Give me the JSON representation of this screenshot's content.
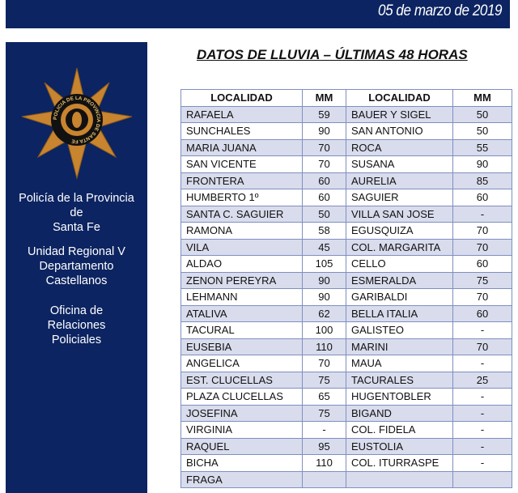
{
  "header": {
    "date": "05 de marzo de 2019"
  },
  "sidebar": {
    "colors": {
      "background": "#0c2461",
      "badge": "#c8842f"
    },
    "line1": "Policía de la Provincia",
    "line2": "de",
    "line3": "Santa Fe",
    "line4": "Unidad Regional V",
    "line5": "Departamento",
    "line6": "Castellanos",
    "line7": "Oficina de",
    "line8": "Relaciones",
    "line9": "Policiales",
    "badge_text": "POLICIA DE LA PROVINCIA DE SANTA FE"
  },
  "title": "DATOS DE LLUVIA – ÚLTIMAS 48 HORAS",
  "table": {
    "headers": [
      "LOCALIDAD",
      "MM",
      "LOCALIDAD",
      "MM"
    ],
    "rows": [
      [
        "RAFAELA",
        "59",
        "BAUER Y SIGEL",
        "50"
      ],
      [
        "SUNCHALES",
        "90",
        "SAN ANTONIO",
        "50"
      ],
      [
        "MARIA JUANA",
        "70",
        "ROCA",
        "55"
      ],
      [
        "SAN VICENTE",
        "70",
        "SUSANA",
        "90"
      ],
      [
        "FRONTERA",
        "60",
        "AURELIA",
        "85"
      ],
      [
        "HUMBERTO 1º",
        "60",
        "SAGUIER",
        "60"
      ],
      [
        "SANTA C. SAGUIER",
        "50",
        "VILLA SAN JOSE",
        "-"
      ],
      [
        "RAMONA",
        "58",
        "EGUSQUIZA",
        "70"
      ],
      [
        "VILA",
        "45",
        "COL. MARGARITA",
        "70"
      ],
      [
        "ALDAO",
        "105",
        "CELLO",
        "60"
      ],
      [
        "ZENON PEREYRA",
        "90",
        "ESMERALDA",
        "75"
      ],
      [
        "LEHMANN",
        "90",
        "GARIBALDI",
        "70"
      ],
      [
        "ATALIVA",
        "62",
        "BELLA ITALIA",
        "60"
      ],
      [
        "TACURAL",
        "100",
        "GALISTEO",
        "-"
      ],
      [
        "EUSEBIA",
        "110",
        "MARINI",
        "70"
      ],
      [
        "ANGELICA",
        "70",
        "MAUA",
        "-"
      ],
      [
        "EST. CLUCELLAS",
        "75",
        "TACURALES",
        "25"
      ],
      [
        "PLAZA CLUCELLAS",
        "65",
        "HUGENTOBLER",
        "-"
      ],
      [
        "JOSEFINA",
        "75",
        "BIGAND",
        "-"
      ],
      [
        "VIRGINIA",
        "-",
        "COL. FIDELA",
        "-"
      ],
      [
        "RAQUEL",
        "95",
        "EUSTOLIA",
        "-"
      ],
      [
        "BICHA",
        "110",
        "COL. ITURRASPE",
        "-"
      ],
      [
        "FRAGA",
        "",
        "",
        ""
      ]
    ]
  }
}
